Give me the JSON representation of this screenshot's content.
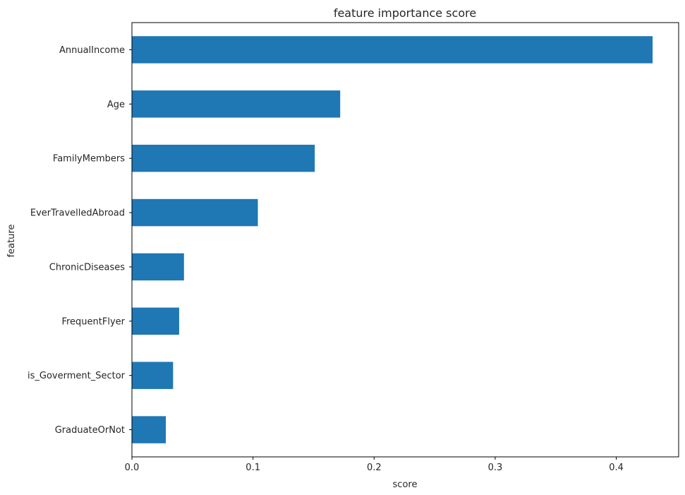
{
  "chart_data": {
    "type": "bar",
    "orientation": "horizontal",
    "title": "feature importance score",
    "xlabel": "score",
    "ylabel": "feature",
    "categories": [
      "AnnualIncome",
      "Age",
      "FamilyMembers",
      "EverTravelledAbroad",
      "ChronicDiseases",
      "FrequentFlyer",
      "is_Goverment_Sector",
      "GraduateOrNot"
    ],
    "values": [
      0.43,
      0.172,
      0.151,
      0.104,
      0.043,
      0.039,
      0.034,
      0.028
    ],
    "xlim": [
      0,
      0.4515
    ],
    "xticks": [
      0,
      0.1,
      0.2,
      0.3,
      0.4
    ],
    "xtick_labels": [
      "0.0",
      "0.1",
      "0.2",
      "0.3",
      "0.4"
    ],
    "grid": false,
    "bar_color": "#1f77b4"
  }
}
